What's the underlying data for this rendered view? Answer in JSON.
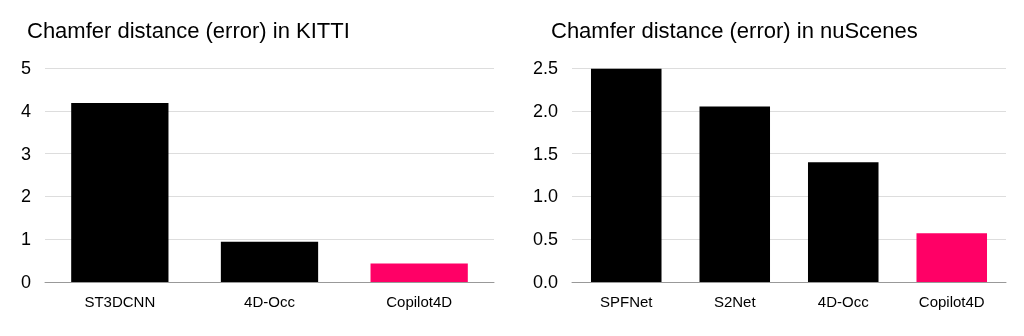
{
  "chart_data": [
    {
      "type": "bar",
      "title": "Chamfer distance (error) in KITTI",
      "categories": [
        "ST3DCNN",
        "4D-Occ",
        "Copilot4D"
      ],
      "values": [
        4.18,
        0.94,
        0.43
      ],
      "colors": [
        "#000000",
        "#000000",
        "#ff0066"
      ],
      "ylim": [
        0,
        5
      ],
      "yticks": [
        0,
        1,
        2,
        3,
        4,
        5
      ],
      "grid": "y"
    },
    {
      "type": "bar",
      "title": "Chamfer distance (error) in nuScenes",
      "categories": [
        "SPFNet",
        "S2Net",
        "4D-Occ",
        "Copilot4D"
      ],
      "values": [
        2.49,
        2.05,
        1.4,
        0.57
      ],
      "colors": [
        "#000000",
        "#000000",
        "#000000",
        "#ff0066"
      ],
      "ylim": [
        0,
        2.5
      ],
      "yticks": [
        {
          "value": 0,
          "label": "0.0"
        },
        {
          "value": 0.5,
          "label": "0.5"
        },
        {
          "value": 1,
          "label": "1.0"
        },
        {
          "value": 1.5,
          "label": "1.5"
        },
        {
          "value": 2,
          "label": "2.0"
        },
        {
          "value": 2.5,
          "label": "2.5"
        }
      ],
      "grid": "y"
    }
  ]
}
